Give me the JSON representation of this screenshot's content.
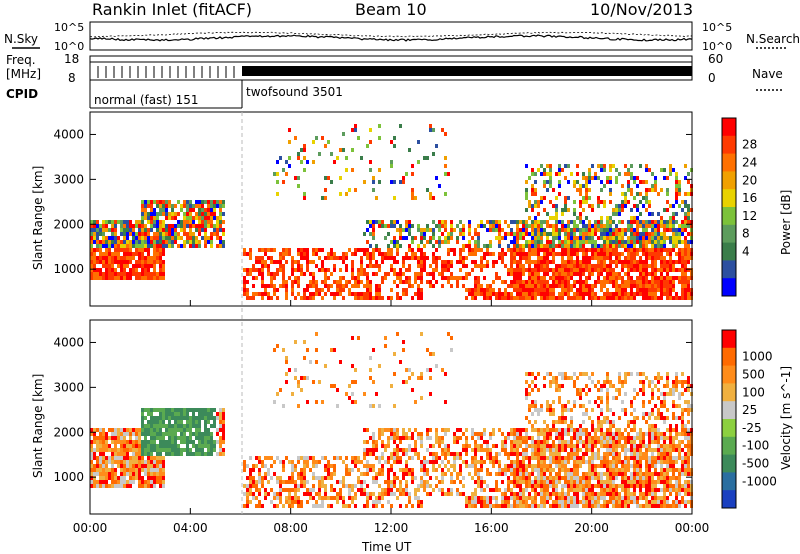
{
  "header": {
    "title": "Rankin Inlet (fitACF)",
    "beam": "Beam 10",
    "date": "10/Nov/2013"
  },
  "noise_panel": {
    "left_label": "N.Sky",
    "right_label": "N.Search",
    "left_ticks": [
      "10^5",
      "10^0"
    ],
    "right_ticks": [
      "10^5",
      "10^0"
    ]
  },
  "freq_panel": {
    "left_label_1": "Freq.",
    "left_label_2": "[MHz]",
    "right_label": "Nave",
    "left_ticks": [
      "18",
      "8"
    ],
    "right_ticks": [
      "60",
      "0"
    ]
  },
  "cpid": {
    "label": "CPID",
    "modes": [
      "normal (fast) 151",
      "twofsound 3501"
    ]
  },
  "chart_data": [
    {
      "type": "heatmap",
      "name": "power",
      "ylabel": "Slant Range [km]",
      "yticks": [
        "4000",
        "3000",
        "2000",
        "1000"
      ],
      "ylim": [
        180,
        4500
      ],
      "colorbar_label": "Power [dB]",
      "colorbar_ticks": [
        "28",
        "24",
        "20",
        "16",
        "12",
        "8",
        "4"
      ],
      "colors": [
        "#0000ff",
        "#2c4fa0",
        "#3a7d4a",
        "#5c9c5c",
        "#7cc23a",
        "#e8d200",
        "#f0a000",
        "#ff7000",
        "#ff3a00",
        "#ff0000"
      ]
    },
    {
      "type": "heatmap",
      "name": "velocity",
      "ylabel": "Slant Range [km]",
      "yticks": [
        "4000",
        "3000",
        "2000",
        "1000"
      ],
      "ylim": [
        180,
        4500
      ],
      "colorbar_label": "Velocity [m s^-1]",
      "colorbar_ticks": [
        "1000",
        "500",
        "100",
        "25",
        "-25",
        "-100",
        "-500",
        "-1000"
      ],
      "colors": [
        "#1a40c0",
        "#2a6ea0",
        "#3c8a5a",
        "#5aaa50",
        "#8cd040",
        "#c8c8c8",
        "#f0b040",
        "#ff8c1a",
        "#ff6a00",
        "#ff0000"
      ]
    }
  ],
  "xaxis": {
    "label": "Time UT",
    "ticks": [
      "00:00",
      "04:00",
      "08:00",
      "12:00",
      "16:00",
      "20:00",
      "00:00"
    ]
  }
}
